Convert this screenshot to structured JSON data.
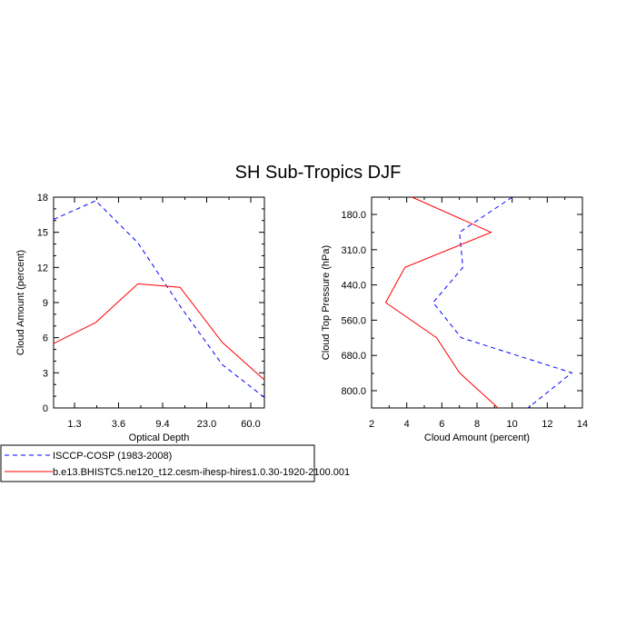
{
  "title": "SH Sub-Tropics DJF",
  "chart_data": [
    {
      "type": "line",
      "xlabel": "Optical Depth",
      "ylabel": "Cloud Amount (percent)",
      "x_tick_labels": [
        "1.3",
        "3.6",
        "9.4",
        "23.0",
        "60.0"
      ],
      "y_ticks": [
        0,
        3,
        6,
        9,
        12,
        15,
        18
      ],
      "ylim": [
        0,
        18
      ],
      "series": [
        {
          "name": "ISCCP-COSP (1983-2008)",
          "color": "#0000ff",
          "dash": "dashed",
          "values": [
            16.1,
            17.7,
            14.1,
            8.7,
            3.7,
            0.9
          ]
        },
        {
          "name": "b.e13.BHISTC5.ne120_t12.cesm-ihesp-hires1.0.30-1920-2100.001",
          "color": "#ff0000",
          "dash": "solid",
          "values": [
            5.5,
            7.3,
            10.6,
            10.3,
            5.6,
            2.4
          ]
        }
      ]
    },
    {
      "type": "line",
      "xlabel": "Cloud Amount (percent)",
      "ylabel": "Cloud Top Pressure (hPa)",
      "x_ticks": [
        2,
        4,
        6,
        8,
        10,
        12,
        14
      ],
      "xlim": [
        2,
        14
      ],
      "y_tick_labels": [
        "180.0",
        "310.0",
        "440.0",
        "560.0",
        "680.0",
        "800.0"
      ],
      "series": [
        {
          "name": "ISCCP-COSP (1983-2008)",
          "color": "#0000ff",
          "dash": "dashed",
          "values": [
            10.0,
            7.0,
            7.2,
            5.5,
            7.1,
            13.4,
            10.9
          ]
        },
        {
          "name": "b.e13.BHISTC5.ne120_t12.cesm-ihesp-hires1.0.30-1920-2100.001",
          "color": "#ff0000",
          "dash": "solid",
          "values": [
            4.3,
            8.8,
            3.9,
            2.8,
            5.7,
            7.0,
            9.2
          ]
        }
      ]
    }
  ],
  "legend": [
    {
      "label": "ISCCP-COSP (1983-2008)",
      "color": "#0000ff",
      "dash": "dashed"
    },
    {
      "label": "b.e13.BHISTC5.ne120_t12.cesm-ihesp-hires1.0.30-1920-2100.001",
      "color": "#ff0000",
      "dash": "solid"
    }
  ]
}
